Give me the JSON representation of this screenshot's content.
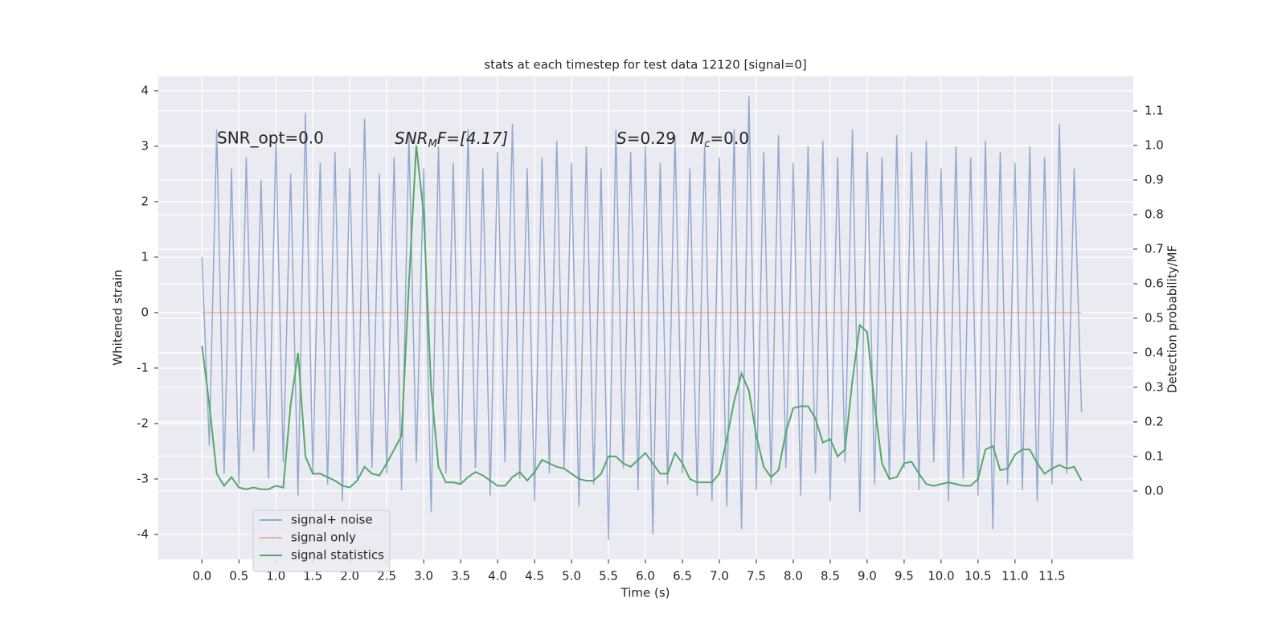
{
  "chart_data": {
    "type": "line",
    "title": "stats at each timestep for test data 12120 [signal=0]",
    "xlabel": "Time (s)",
    "ylabel": "Whitened strain",
    "y2label": "Detection probability/MF",
    "annotations": {
      "snr_opt": "SNR_opt=0.0",
      "snr_mf": {
        "main": "SNR",
        "sub": "M",
        "rest": "F=[4.17]"
      },
      "s": {
        "main": "S",
        "rest": "=0.29"
      },
      "mc": {
        "main": "M",
        "sub": "c",
        "rest": "=0.0"
      }
    },
    "grid": true,
    "legend": "lower left",
    "xlim": [
      -0.59,
      12.6
    ],
    "ylim": [
      -4.45,
      4.26
    ],
    "y2lim": [
      -0.198,
      1.2
    ],
    "xticks": [
      {
        "value": 0,
        "label": "0.0"
      },
      0.5,
      {
        "value": 1,
        "label": "1.0"
      },
      1.5,
      {
        "value": 2,
        "label": "2.0"
      },
      2.5,
      {
        "value": 3,
        "label": "3.0"
      },
      3.5,
      {
        "value": 4,
        "label": "4.0"
      },
      4.5,
      {
        "value": 5,
        "label": "5.0"
      },
      5.5,
      {
        "value": 6,
        "label": "6.0"
      },
      6.5,
      {
        "value": 7,
        "label": "7.0"
      },
      7.5,
      {
        "value": 8,
        "label": "8.0"
      },
      8.5,
      {
        "value": 9,
        "label": "9.0"
      },
      9.5,
      {
        "value": 10,
        "label": "10.0"
      },
      10.5,
      {
        "value": 11,
        "label": "11.0"
      },
      11.5
    ],
    "yticks": [
      -4,
      -3,
      -2,
      -1,
      0,
      1,
      2,
      3,
      4
    ],
    "y2ticks": [
      {
        "value": 0,
        "label": "0.0"
      },
      0.1,
      0.2,
      0.3,
      0.4,
      0.5,
      0.6,
      0.7,
      0.8,
      0.9,
      {
        "value": 1,
        "label": "1.0"
      },
      1.1
    ],
    "x": [
      0,
      0.1,
      0.2,
      0.3,
      0.4,
      0.5,
      0.6,
      0.7,
      0.8,
      0.9,
      1,
      1.1,
      1.2,
      1.3,
      1.4,
      1.5,
      1.6,
      1.7,
      1.8,
      1.9,
      2,
      2.1,
      2.2,
      2.3,
      2.4,
      2.5,
      2.6,
      2.7,
      2.8,
      2.9,
      3,
      3.1,
      3.2,
      3.3,
      3.4,
      3.5,
      3.6,
      3.7,
      3.8,
      3.9,
      4,
      4.1,
      4.2,
      4.3,
      4.4,
      4.5,
      4.6,
      4.7,
      4.8,
      4.9,
      5,
      5.1,
      5.2,
      5.3,
      5.4,
      5.5,
      5.6,
      5.7,
      5.8,
      5.9,
      6,
      6.1,
      6.2,
      6.3,
      6.4,
      6.5,
      6.6,
      6.7,
      6.8,
      6.9,
      7,
      7.1,
      7.2,
      7.3,
      7.4,
      7.5,
      7.6,
      7.7,
      7.8,
      7.9,
      8,
      8.1,
      8.2,
      8.3,
      8.4,
      8.5,
      8.6,
      8.7,
      8.8,
      8.9,
      9,
      9.1,
      9.2,
      9.3,
      9.4,
      9.5,
      9.6,
      9.7,
      9.8,
      9.9,
      10,
      10.1,
      10.2,
      10.3,
      10.4,
      10.5,
      10.6,
      10.7,
      10.8,
      10.9,
      11,
      11.1,
      11.2,
      11.3,
      11.4,
      11.5,
      11.6,
      11.7,
      11.8,
      11.9
    ],
    "series": [
      {
        "name": "signal+ noise",
        "color": "#4c72b0",
        "axis": "y",
        "values": [
          1.0,
          -2.4,
          3.3,
          -2.9,
          2.6,
          -3.1,
          2.8,
          -2.5,
          2.4,
          -3.0,
          3.1,
          -2.7,
          2.5,
          -3.3,
          3.6,
          -2.9,
          2.7,
          -3.1,
          2.9,
          -3.4,
          2.6,
          -3.0,
          3.5,
          -2.8,
          2.5,
          -2.9,
          2.8,
          -3.2,
          3.2,
          -2.7,
          2.6,
          -3.6,
          3.0,
          -2.9,
          2.7,
          -3.1,
          3.3,
          -2.8,
          2.6,
          -3.3,
          2.9,
          -2.7,
          3.4,
          -3.0,
          2.6,
          -3.4,
          2.8,
          -2.9,
          3.1,
          -2.8,
          2.7,
          -3.5,
          3.0,
          -3.1,
          2.6,
          -4.1,
          3.3,
          -2.8,
          2.9,
          -3.2,
          3.0,
          -4.0,
          2.7,
          -3.1,
          3.2,
          -2.9,
          2.6,
          -3.3,
          3.0,
          -3.4,
          2.8,
          -3.5,
          3.3,
          -3.9,
          3.9,
          -3.2,
          2.9,
          -3.1,
          3.2,
          -2.8,
          2.7,
          -3.3,
          3.0,
          -2.9,
          3.1,
          -3.4,
          2.8,
          -2.7,
          3.3,
          -3.6,
          2.9,
          -3.1,
          2.8,
          -3.0,
          3.2,
          -2.8,
          2.9,
          -3.2,
          3.1,
          -2.7,
          2.6,
          -3.4,
          3.0,
          -3.0,
          2.8,
          -3.3,
          3.1,
          -3.9,
          2.9,
          -3.1,
          2.7,
          -3.2,
          3.0,
          -3.4,
          2.8,
          -3.1,
          3.4,
          -2.9,
          2.6,
          -1.8
        ]
      },
      {
        "name": "signal only",
        "color": "#dd8452",
        "axis": "y",
        "values": [
          0,
          0,
          0,
          0,
          0,
          0,
          0,
          0,
          0,
          0,
          0,
          0,
          0,
          0,
          0,
          0,
          0,
          0,
          0,
          0,
          0,
          0,
          0,
          0,
          0,
          0,
          0,
          0,
          0,
          0,
          0,
          0,
          0,
          0,
          0,
          0,
          0,
          0,
          0,
          0,
          0,
          0,
          0,
          0,
          0,
          0,
          0,
          0,
          0,
          0,
          0,
          0,
          0,
          0,
          0,
          0,
          0,
          0,
          0,
          0,
          0,
          0,
          0,
          0,
          0,
          0,
          0,
          0,
          0,
          0,
          0,
          0,
          0,
          0,
          0,
          0,
          0,
          0,
          0,
          0,
          0,
          0,
          0,
          0,
          0,
          0,
          0,
          0,
          0,
          0,
          0,
          0,
          0,
          0,
          0,
          0,
          0,
          0,
          0,
          0,
          0,
          0,
          0,
          0,
          0,
          0,
          0,
          0,
          0,
          0,
          0,
          0,
          0,
          0,
          0,
          0,
          0,
          0,
          0,
          0
        ]
      },
      {
        "name": "signal statistics",
        "color": "#55a868",
        "axis": "y2",
        "values": [
          0.42,
          0.25,
          0.05,
          0.015,
          0.04,
          0.01,
          0.005,
          0.01,
          0.005,
          0.005,
          0.015,
          0.01,
          0.25,
          0.4,
          0.1,
          0.05,
          0.05,
          0.04,
          0.03,
          0.015,
          0.01,
          0.03,
          0.07,
          0.05,
          0.045,
          0.08,
          0.12,
          0.16,
          0.6,
          1.0,
          0.8,
          0.3,
          0.07,
          0.025,
          0.025,
          0.02,
          0.04,
          0.055,
          0.045,
          0.03,
          0.015,
          0.015,
          0.04,
          0.055,
          0.03,
          0.055,
          0.09,
          0.08,
          0.07,
          0.065,
          0.05,
          0.035,
          0.03,
          0.03,
          0.05,
          0.1,
          0.1,
          0.08,
          0.07,
          0.09,
          0.11,
          0.08,
          0.05,
          0.05,
          0.11,
          0.08,
          0.035,
          0.025,
          0.025,
          0.025,
          0.05,
          0.15,
          0.26,
          0.34,
          0.29,
          0.16,
          0.07,
          0.04,
          0.06,
          0.17,
          0.24,
          0.245,
          0.245,
          0.21,
          0.14,
          0.15,
          0.1,
          0.12,
          0.32,
          0.48,
          0.46,
          0.25,
          0.08,
          0.035,
          0.04,
          0.08,
          0.085,
          0.05,
          0.02,
          0.015,
          0.02,
          0.025,
          0.02,
          0.015,
          0.015,
          0.035,
          0.12,
          0.13,
          0.06,
          0.065,
          0.105,
          0.12,
          0.12,
          0.08,
          0.05,
          0.065,
          0.075,
          0.065,
          0.07,
          0.03
        ]
      }
    ]
  }
}
